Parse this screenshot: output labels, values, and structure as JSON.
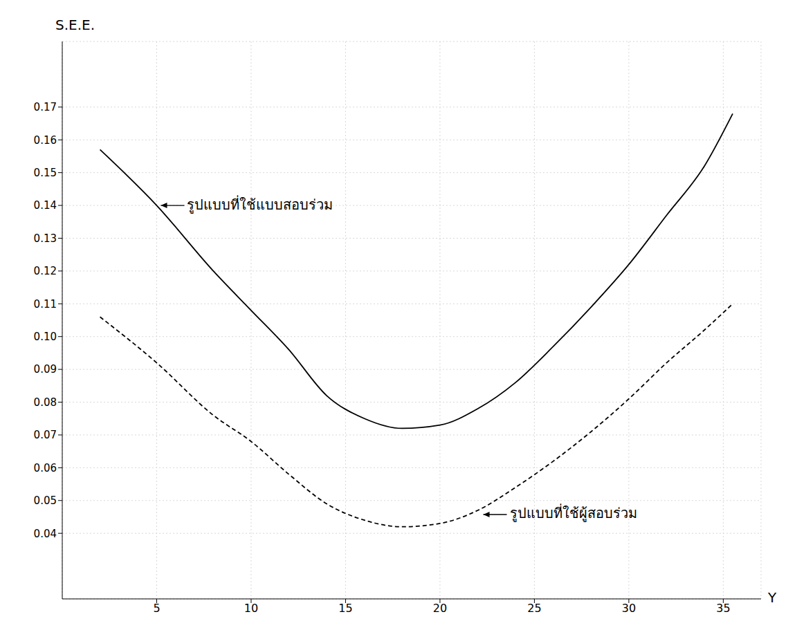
{
  "chart_data": {
    "type": "line",
    "y_label": "S.E.E.",
    "x_label": "Y",
    "x": [
      2,
      5,
      8,
      10,
      12,
      14,
      16,
      18,
      20,
      22,
      24,
      26,
      28,
      30,
      32,
      34,
      35.5
    ],
    "series": [
      {
        "name": "รูปแบบที่ใช้แบบสอบร่วม",
        "color": "#000000",
        "line_style": "solid",
        "marker": "none",
        "values": [
          0.157,
          0.14,
          0.12,
          0.108,
          0.096,
          0.082,
          0.075,
          0.072,
          0.073,
          0.078,
          0.086,
          0.097,
          0.109,
          0.122,
          0.137,
          0.152,
          0.168
        ]
      },
      {
        "name": "รูปแบบที่ใช้ผู้สอบร่วม",
        "color": "#000000",
        "line_style": "dashed",
        "marker": "none",
        "values": [
          0.106,
          0.092,
          0.076,
          0.068,
          0.058,
          0.049,
          0.044,
          0.042,
          0.043,
          0.047,
          0.054,
          0.062,
          0.071,
          0.081,
          0.092,
          0.102,
          0.11
        ]
      }
    ],
    "xlim": [
      0,
      37
    ],
    "xticks": [
      5,
      10,
      15,
      20,
      25,
      30,
      35
    ],
    "ylim": [
      0.02,
      0.19
    ],
    "yticks": [
      0.04,
      0.05,
      0.06,
      0.07,
      0.08,
      0.09,
      {
        "value": 0.1,
        "label": "0.10"
      },
      0.11,
      0.12,
      0.13,
      0.14,
      0.15,
      0.16,
      0.17
    ],
    "grid": true
  }
}
